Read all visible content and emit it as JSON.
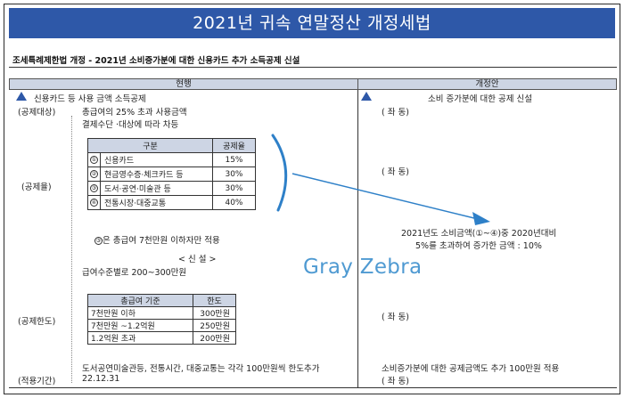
{
  "title": "2021년 귀속 연말정산 개정세법",
  "subtitle": "조세특례제한법 개정 - 2021년 소비증가분에 대한 신용카드 추가 소득공제 신설",
  "columns": {
    "current": "현행",
    "proposed": "개정안"
  },
  "current": {
    "heading": "신용카드 등 사용 금액 소득공제",
    "deduct_target_label": "(공제대상)",
    "deduct_target_lines": [
      "총급여의 25% 초과 사용금액",
      "결제수단 ·대상에 따라 차등"
    ],
    "rate_label": "(공제율)",
    "rate_table": {
      "headers": [
        "구분",
        "공제율"
      ],
      "rows": [
        {
          "num": "①",
          "name": "신용카드",
          "rate": "15%"
        },
        {
          "num": "②",
          "name": "현금영수증·체크카드 등",
          "rate": "30%"
        },
        {
          "num": "③",
          "name": "도서·공연·미술관 등",
          "rate": "30%"
        },
        {
          "num": "④",
          "name": "전통시장·대중교통",
          "rate": "40%"
        }
      ]
    },
    "rate_note_num": "③",
    "rate_note": "은 총급여 7천만원 이하자만 적용",
    "new_tag": "< 신 설 >",
    "limit_intro": "급여수준별로 200~300만원",
    "limit_label": "(공제한도)",
    "limit_table": {
      "headers": [
        "총급여 기준",
        "한도"
      ],
      "rows": [
        {
          "k": "7천만원 이하",
          "v": "300만원"
        },
        {
          "k": "7천만원 ~1.2억원",
          "v": "250만원"
        },
        {
          "k": "1.2억원 초과",
          "v": "200만원"
        }
      ]
    },
    "period_label": "(적용기간)",
    "period_lines": [
      "도서공연미술관등, 전통시간, 대중교통는 각각 100만원씩 한도추가",
      "22.12.31"
    ]
  },
  "proposed": {
    "heading": "소비 증가분에 대한 공제 신설",
    "same1": "( 좌 동)",
    "same2": "( 좌 동)",
    "rate_line1": "2021년도 소비금액(①~④)중 2020년대비",
    "rate_line2": "5%를 초과하여 증가한 금액 : 10%",
    "same3": "( 좌 동)",
    "period_line1": "소비증가분에 대한 공제금액도 추가 100만원 적용",
    "same4": "( 좌 동)"
  },
  "watermark": "Gray Zebra",
  "colors": {
    "banner": "#2e58a8",
    "header_fill": "#cdd5e4",
    "arrow": "#2e80c8",
    "watermark": "#4f9ad2"
  }
}
